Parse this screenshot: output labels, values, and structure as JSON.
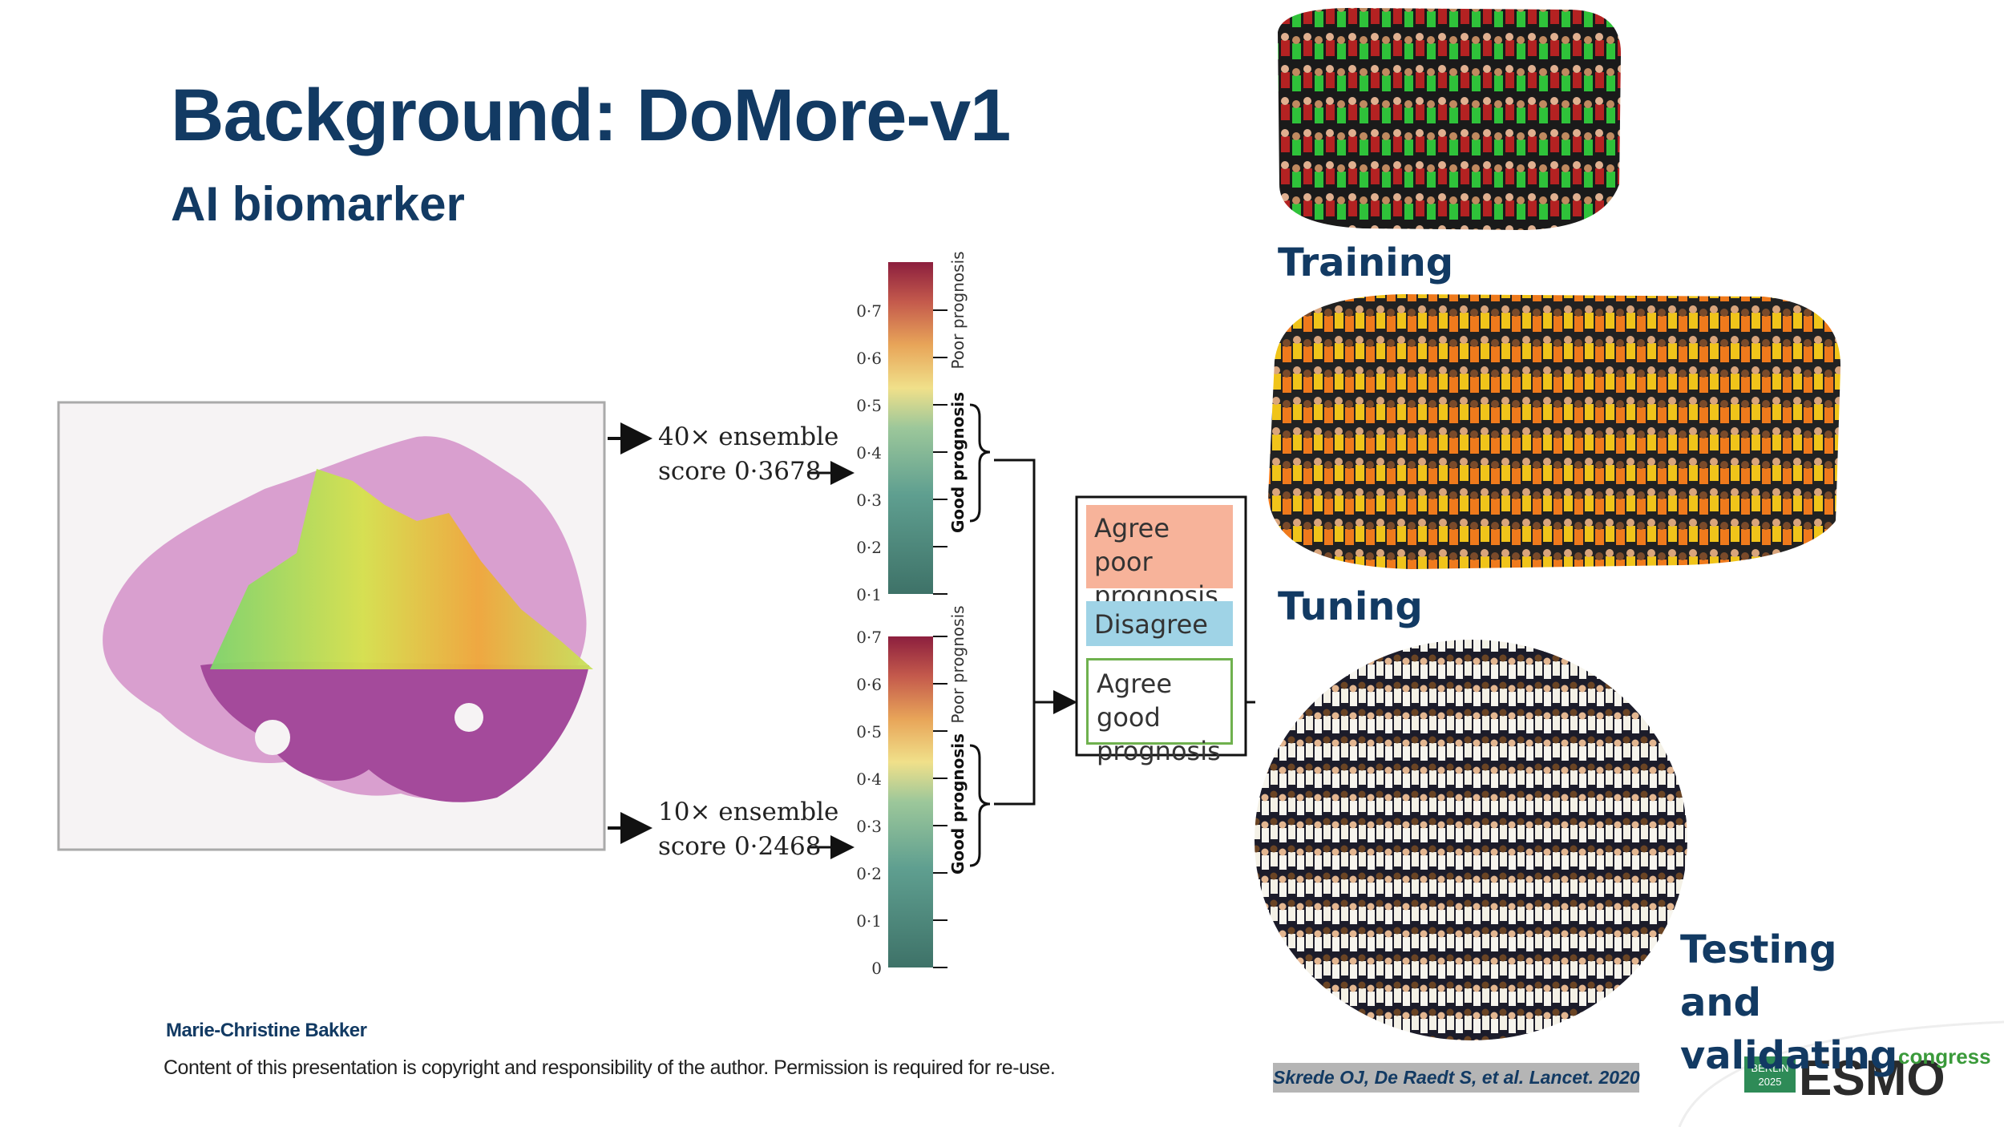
{
  "header": {
    "title": "Background: DoMore-v1",
    "subtitle": "AI biomarker"
  },
  "ensembles": [
    {
      "line1": "40× ensemble",
      "line2": "score 0·3678"
    },
    {
      "line1": "10× ensemble",
      "line2": "score 0·2468"
    }
  ],
  "scales": [
    {
      "ticks": [
        "0·7",
        "0·6",
        "0·5",
        "0·4",
        "0·3",
        "0·2",
        "0·1"
      ],
      "poor_label": "Poor prognosis",
      "good_label": "Good prognosis"
    },
    {
      "ticks": [
        "0·7",
        "0·6",
        "0·5",
        "0·4",
        "0·3",
        "0·2",
        "0·1",
        "0"
      ],
      "poor_label": "Poor prognosis",
      "good_label": "Good prognosis"
    }
  ],
  "outcomes": [
    "Agree poor prognosis",
    "Disagree",
    "Agree good prognosis"
  ],
  "cohorts": [
    "Training",
    "Tuning",
    "Testing and validating"
  ],
  "footer": {
    "author": "Marie-Christine Bakker",
    "copyright": "Content of this presentation is copyright and responsibility of the author. Permission is required for re-use.",
    "citation": "Skrede OJ, De Raedt S, et al. Lancet. 2020"
  },
  "logo": {
    "city": "BERLIN",
    "year": "2025",
    "brand": "ESMO",
    "suffix": "congress"
  }
}
